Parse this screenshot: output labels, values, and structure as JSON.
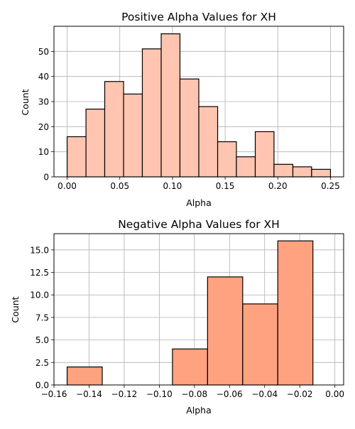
{
  "chart_data": [
    {
      "type": "bar",
      "title": "Positive Alpha Values for XH",
      "xlabel": "Alpha",
      "ylabel": "Count",
      "bin_edges": [
        0.0,
        0.0179,
        0.0357,
        0.0536,
        0.0714,
        0.0893,
        0.1071,
        0.125,
        0.1429,
        0.1607,
        0.1786,
        0.1964,
        0.2143,
        0.2321,
        0.25
      ],
      "values": [
        16,
        27,
        38,
        33,
        51,
        57,
        39,
        28,
        14,
        8,
        18,
        5,
        4,
        3
      ],
      "xlim": [
        -0.0125,
        0.2625
      ],
      "ylim": [
        0,
        60
      ],
      "xticks": [
        0.0,
        0.05,
        0.1,
        0.15,
        0.2,
        0.25
      ],
      "xtick_labels": [
        "0.00",
        "0.05",
        "0.10",
        "0.15",
        "0.20",
        "0.25"
      ],
      "yticks": [
        0,
        10,
        20,
        30,
        40,
        50
      ],
      "ytick_labels": [
        "0",
        "10",
        "20",
        "30",
        "40",
        "50"
      ],
      "grid": true,
      "color": "#FFC5B0"
    },
    {
      "type": "bar",
      "title": "Negative Alpha Values for XH",
      "xlabel": "Alpha",
      "ylabel": "Count",
      "bin_edges": [
        -0.1525,
        -0.1325,
        -0.1125,
        -0.0925,
        -0.0725,
        -0.0525,
        -0.0325,
        -0.0125
      ],
      "bin_edges_note": "",
      "values": [
        2,
        0,
        0,
        4,
        12,
        9,
        16
      ],
      "xlim": [
        -0.16,
        0.005
      ],
      "ylim": [
        0,
        16.8
      ],
      "xticks": [
        -0.16,
        -0.14,
        -0.12,
        -0.1,
        -0.08,
        -0.06,
        -0.04,
        -0.02,
        0.0
      ],
      "xtick_labels": [
        "−0.16",
        "−0.14",
        "−0.12",
        "−0.10",
        "−0.08",
        "−0.06",
        "−0.04",
        "−0.02",
        "0.00"
      ],
      "yticks": [
        0,
        2.5,
        5,
        7.5,
        10,
        12.5,
        15
      ],
      "ytick_labels": [
        "0.0",
        "2.5",
        "5.0",
        "7.5",
        "10.0",
        "12.5",
        "15.0"
      ],
      "grid": true,
      "color": "#FFA27F"
    }
  ]
}
